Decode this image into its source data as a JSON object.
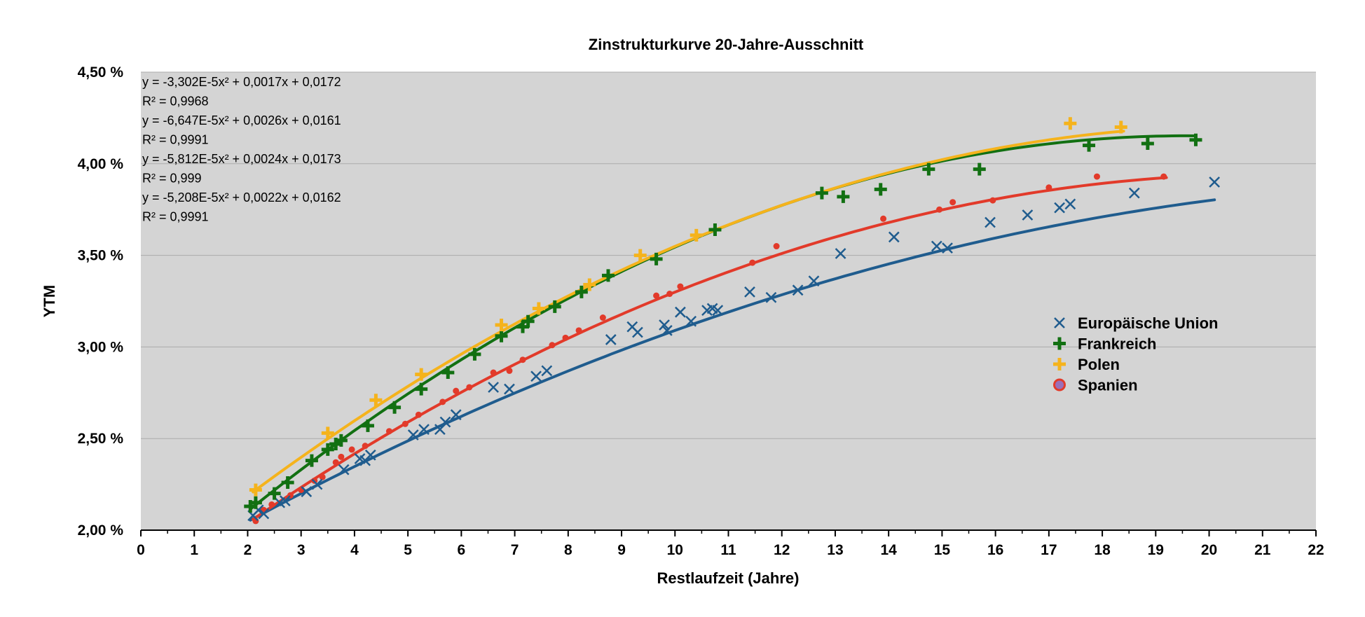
{
  "chart_data": {
    "type": "scatter",
    "title": "Zinstrukturkurve 20-Jahre-Ausschnitt",
    "xlabel": "Restlaufzeit (Jahre)",
    "ylabel": "YTM",
    "xlim": [
      0,
      22
    ],
    "ylim": [
      0.02,
      0.045
    ],
    "x_ticks": [
      0,
      1,
      2,
      3,
      4,
      5,
      6,
      7,
      8,
      9,
      10,
      11,
      12,
      13,
      14,
      15,
      16,
      17,
      18,
      19,
      20,
      21,
      22
    ],
    "y_ticks": [
      0.02,
      0.025,
      0.03,
      0.035,
      0.04,
      0.045
    ],
    "y_tick_labels": [
      "2,00 %",
      "2,50 %",
      "3,00 %",
      "3,50 %",
      "4,00 %",
      "4,50 %"
    ],
    "grid": "horizontal",
    "plot_background": "#d4d4d4",
    "legend_position": "right",
    "trendline_labels": [
      "y = -3,302E-5x² + 0,0017x + 0,0172",
      "R² = 0,9968",
      "y = -6,647E-5x² + 0,0026x + 0,0161",
      "R² = 0,9991",
      "y = -5,812E-5x² + 0,0024x + 0,0173",
      "R² = 0,999",
      "y = -5,208E-5x² + 0,0022x + 0,0162",
      "R² = 0,9991"
    ],
    "series": [
      {
        "name": "Europäische Union",
        "marker": "x",
        "color": "#1f5c8e",
        "trend": {
          "a": -3.302e-05,
          "b": 0.0017,
          "c": 0.0172,
          "xmin": 2.05,
          "xmax": 20.1
        },
        "points": [
          [
            2.1,
            0.0208
          ],
          [
            2.2,
            0.0211
          ],
          [
            2.3,
            0.0209
          ],
          [
            2.6,
            0.0215
          ],
          [
            2.7,
            0.0216
          ],
          [
            3.1,
            0.0221
          ],
          [
            3.3,
            0.0225
          ],
          [
            3.8,
            0.0233
          ],
          [
            4.1,
            0.0239
          ],
          [
            4.2,
            0.0238
          ],
          [
            4.3,
            0.0241
          ],
          [
            5.1,
            0.0252
          ],
          [
            5.3,
            0.0255
          ],
          [
            5.6,
            0.0255
          ],
          [
            5.7,
            0.0259
          ],
          [
            5.9,
            0.0263
          ],
          [
            6.6,
            0.0278
          ],
          [
            6.9,
            0.0277
          ],
          [
            7.4,
            0.0284
          ],
          [
            7.6,
            0.0287
          ],
          [
            8.8,
            0.0304
          ],
          [
            9.2,
            0.0311
          ],
          [
            9.3,
            0.0308
          ],
          [
            9.8,
            0.0312
          ],
          [
            9.85,
            0.0309
          ],
          [
            10.1,
            0.0319
          ],
          [
            10.3,
            0.0314
          ],
          [
            10.6,
            0.032
          ],
          [
            10.7,
            0.0321
          ],
          [
            10.8,
            0.032
          ],
          [
            11.4,
            0.033
          ],
          [
            11.8,
            0.0327
          ],
          [
            12.3,
            0.0331
          ],
          [
            12.6,
            0.0336
          ],
          [
            13.1,
            0.0351
          ],
          [
            14.1,
            0.036
          ],
          [
            14.9,
            0.0355
          ],
          [
            15.1,
            0.0354
          ],
          [
            15.9,
            0.0368
          ],
          [
            16.6,
            0.0372
          ],
          [
            17.2,
            0.0376
          ],
          [
            17.4,
            0.0378
          ],
          [
            18.6,
            0.0384
          ],
          [
            20.1,
            0.039
          ]
        ]
      },
      {
        "name": "Frankreich",
        "marker": "plus",
        "color": "#127012",
        "trend": {
          "a": -6.647e-05,
          "b": 0.0026,
          "c": 0.0161,
          "xmin": 2.05,
          "xmax": 19.75
        },
        "points": [
          [
            2.05,
            0.0213
          ],
          [
            2.15,
            0.0215
          ],
          [
            2.5,
            0.022
          ],
          [
            2.75,
            0.0226
          ],
          [
            3.2,
            0.0238
          ],
          [
            3.5,
            0.0244
          ],
          [
            3.65,
            0.0247
          ],
          [
            3.75,
            0.0249
          ],
          [
            4.25,
            0.0257
          ],
          [
            4.75,
            0.0267
          ],
          [
            5.25,
            0.0277
          ],
          [
            5.75,
            0.0286
          ],
          [
            6.25,
            0.0296
          ],
          [
            6.75,
            0.0306
          ],
          [
            7.15,
            0.0311
          ],
          [
            7.25,
            0.0314
          ],
          [
            7.75,
            0.0322
          ],
          [
            8.25,
            0.033
          ],
          [
            8.75,
            0.0339
          ],
          [
            9.65,
            0.0348
          ],
          [
            10.75,
            0.0364
          ],
          [
            12.75,
            0.0384
          ],
          [
            13.15,
            0.0382
          ],
          [
            13.85,
            0.0386
          ],
          [
            14.75,
            0.0397
          ],
          [
            15.7,
            0.0397
          ],
          [
            17.75,
            0.041
          ],
          [
            18.85,
            0.0411
          ],
          [
            19.75,
            0.0413
          ]
        ]
      },
      {
        "name": "Polen",
        "marker": "plus",
        "color": "#f5b31c",
        "trend": {
          "a": -5.812e-05,
          "b": 0.0024,
          "c": 0.0173,
          "xmin": 2.1,
          "xmax": 18.4
        },
        "points": [
          [
            2.15,
            0.0222
          ],
          [
            3.5,
            0.0253
          ],
          [
            4.4,
            0.0271
          ],
          [
            5.25,
            0.0285
          ],
          [
            6.75,
            0.0312
          ],
          [
            7.45,
            0.0321
          ],
          [
            8.4,
            0.0334
          ],
          [
            9.35,
            0.035
          ],
          [
            10.4,
            0.0361
          ],
          [
            17.4,
            0.0422
          ],
          [
            18.35,
            0.042
          ]
        ]
      },
      {
        "name": "Spanien",
        "marker": "dot",
        "color": "#e23a2a",
        "trend": {
          "a": -5.208e-05,
          "b": 0.0022,
          "c": 0.0162,
          "xmin": 2.1,
          "xmax": 19.2
        },
        "points": [
          [
            2.15,
            0.0205
          ],
          [
            2.3,
            0.0211
          ],
          [
            2.45,
            0.0214
          ],
          [
            2.8,
            0.0219
          ],
          [
            3.0,
            0.0222
          ],
          [
            3.25,
            0.0227
          ],
          [
            3.4,
            0.0229
          ],
          [
            3.65,
            0.0237
          ],
          [
            3.75,
            0.024
          ],
          [
            3.95,
            0.0244
          ],
          [
            4.2,
            0.0246
          ],
          [
            4.65,
            0.0254
          ],
          [
            4.95,
            0.0258
          ],
          [
            5.2,
            0.0263
          ],
          [
            5.65,
            0.027
          ],
          [
            5.9,
            0.0276
          ],
          [
            6.15,
            0.0278
          ],
          [
            6.6,
            0.0286
          ],
          [
            6.9,
            0.0287
          ],
          [
            7.15,
            0.0293
          ],
          [
            7.7,
            0.0301
          ],
          [
            7.95,
            0.0305
          ],
          [
            8.2,
            0.0309
          ],
          [
            8.65,
            0.0316
          ],
          [
            9.65,
            0.0328
          ],
          [
            9.9,
            0.0329
          ],
          [
            10.1,
            0.0333
          ],
          [
            11.45,
            0.0346
          ],
          [
            11.9,
            0.0355
          ],
          [
            13.9,
            0.037
          ],
          [
            14.95,
            0.0375
          ],
          [
            15.2,
            0.0379
          ],
          [
            15.95,
            0.038
          ],
          [
            17.0,
            0.0387
          ],
          [
            17.9,
            0.0393
          ],
          [
            19.15,
            0.0393
          ]
        ]
      }
    ]
  }
}
